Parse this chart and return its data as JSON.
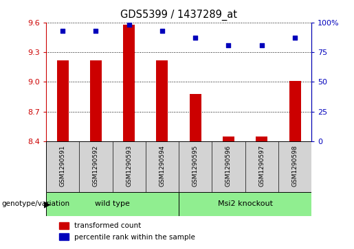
{
  "title": "GDS5399 / 1437289_at",
  "samples": [
    "GSM1290591",
    "GSM1290592",
    "GSM1290593",
    "GSM1290594",
    "GSM1290595",
    "GSM1290596",
    "GSM1290597",
    "GSM1290598"
  ],
  "transformed_count": [
    9.22,
    9.22,
    9.58,
    9.22,
    8.88,
    8.45,
    8.45,
    9.01
  ],
  "percentile_rank": [
    93,
    93,
    98,
    93,
    87,
    81,
    81,
    87
  ],
  "ylim": [
    8.4,
    9.6
  ],
  "yticks": [
    8.4,
    8.7,
    9.0,
    9.3,
    9.6
  ],
  "right_yticks": [
    0,
    25,
    50,
    75,
    100
  ],
  "bar_color": "#CC0000",
  "dot_color": "#0000BB",
  "bar_baseline": 8.4,
  "group_label_prefix": "genotype/variation",
  "legend_bar_label": "transformed count",
  "legend_dot_label": "percentile rank within the sample",
  "tick_color_left": "#CC0000",
  "tick_color_right": "#0000BB",
  "grid_color": "#000000",
  "sample_box_color": "#D3D3D3",
  "group_box_color": "#90EE90",
  "wild_type_range": [
    0,
    3
  ],
  "msi2_range": [
    4,
    7
  ]
}
